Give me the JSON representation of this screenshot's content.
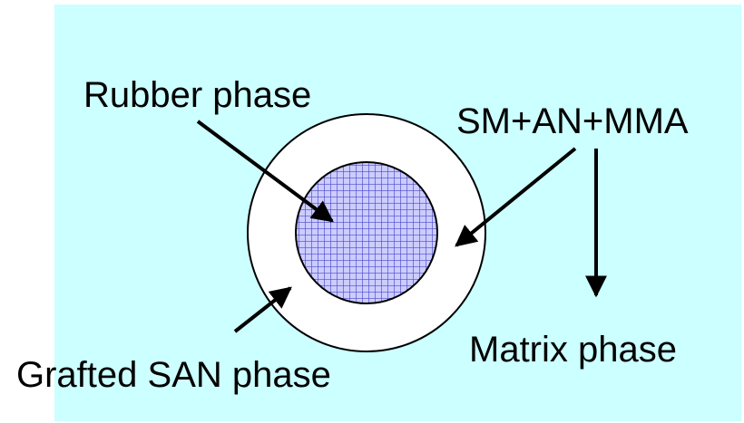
{
  "colors": {
    "background": "#ccffff",
    "shell_fill": "#ffffff",
    "core_fill": "#ccccff",
    "core_grid": "#4b4bc8",
    "stroke": "#000000"
  },
  "labels": {
    "rubber_phase": "Rubber phase",
    "monomers": "SM+AN+MMA",
    "matrix_phase": "Matrix phase",
    "grafted_san_phase": "Grafted SAN phase"
  }
}
